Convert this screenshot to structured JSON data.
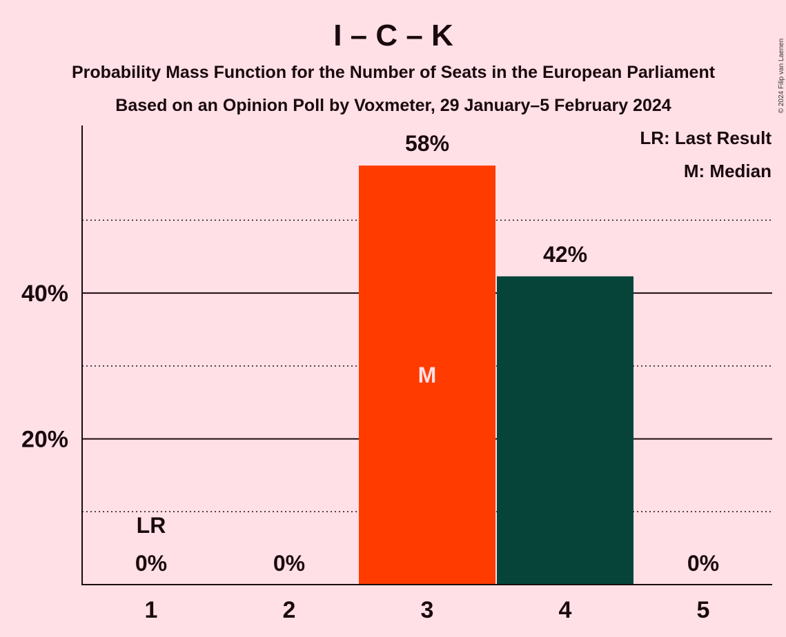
{
  "chart_data": {
    "type": "bar",
    "title": "I – C – K",
    "subtitle_line1": "Probability Mass Function for the Number of Seats in the European Parliament",
    "subtitle_line2": "Based on an Opinion Poll by Voxmeter, 29 January–5 February 2024",
    "categories": [
      "1",
      "2",
      "3",
      "4",
      "5"
    ],
    "values": [
      0,
      0,
      57.5,
      42.3,
      0
    ],
    "value_labels": [
      "0%",
      "0%",
      "58%",
      "42%",
      "0%"
    ],
    "bar_colors": [
      "#FF3B00",
      "#FF3B00",
      "#FF3B00",
      "#06443A",
      "#FF3B00"
    ],
    "ylim": [
      0,
      63
    ],
    "y_major_ticks": [
      20,
      40
    ],
    "y_major_tick_labels": [
      "20%",
      "40%"
    ],
    "y_minor_gridlines": [
      10,
      30,
      50
    ],
    "last_result_category": "1",
    "last_result_marker": "LR",
    "median_category": "3",
    "median_marker": "M",
    "legend": [
      "LR: Last Result",
      "M: Median"
    ],
    "legend_position": "top-right",
    "copyright": "© 2024 Filip van Laenen",
    "colors": {
      "background": "#FFE0E6",
      "text": "#1a0a0f",
      "median_bar": "#FF3B00",
      "other_bar": "#06443A"
    }
  }
}
